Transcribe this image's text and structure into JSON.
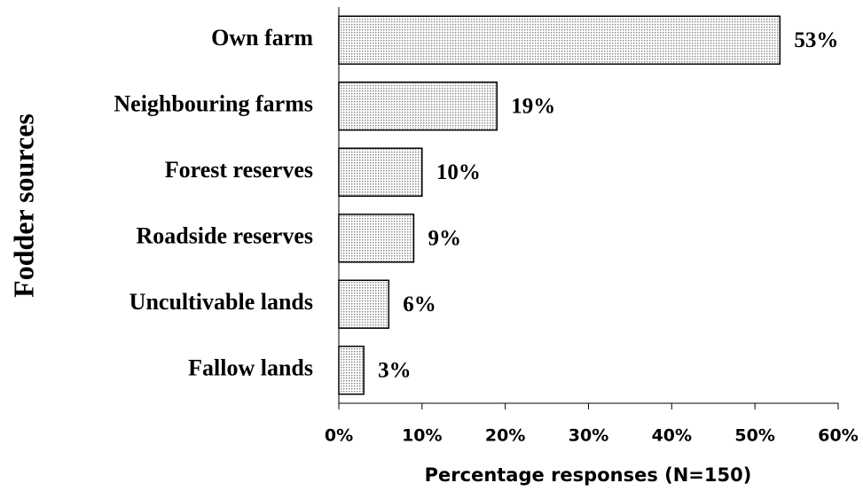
{
  "chart_data": {
    "type": "bar",
    "orientation": "horizontal",
    "categories": [
      "Own farm",
      "Neighbouring farms",
      "Forest reserves",
      "Roadside reserves",
      "Uncultivable lands",
      "Fallow lands"
    ],
    "values": [
      53,
      19,
      10,
      9,
      6,
      3
    ],
    "value_labels": [
      "53%",
      "19%",
      "10%",
      "9%",
      "6%",
      "3%"
    ],
    "color": "#7f7f7f",
    "xlim": [
      0,
      60
    ],
    "xticks": [
      {
        "value": 0,
        "label": "0%"
      },
      {
        "value": 10,
        "label": "10%"
      },
      {
        "value": 20,
        "label": "20%"
      },
      {
        "value": 30,
        "label": "30%"
      },
      {
        "value": 40,
        "label": "40%"
      },
      {
        "value": 50,
        "label": "50%"
      },
      {
        "value": 60,
        "label": "60%"
      }
    ],
    "xlabel": "Percentage responses (N=150)",
    "ylabel": "Fodder sources",
    "grid": false
  }
}
